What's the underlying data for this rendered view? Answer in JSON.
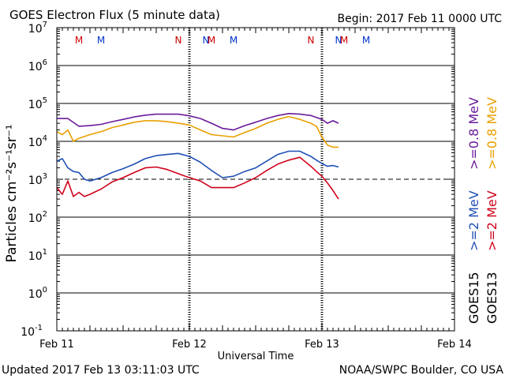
{
  "chart_data": {
    "type": "line",
    "title": "GOES Electron Flux (5 minute data)",
    "begin_label": "Begin: 2017 Feb 11 0000 UTC",
    "xlabel": "Universal Time",
    "ylabel": "Particles cm⁻²s⁻¹sr⁻¹",
    "x_units": "hours since Begin",
    "xlim": [
      0,
      72
    ],
    "x_ticks": [
      {
        "x": 0,
        "label": "Feb 11"
      },
      {
        "x": 24,
        "label": "Feb 12"
      },
      {
        "x": 48,
        "label": "Feb 13"
      },
      {
        "x": 72,
        "label": "Feb 14"
      }
    ],
    "y_scale": "log",
    "ylim_exp": [
      -1,
      7
    ],
    "y_ticks": [
      {
        "exp": 7,
        "label": "10",
        "sup": "7"
      },
      {
        "exp": 6,
        "label": "10",
        "sup": "6"
      },
      {
        "exp": 5,
        "label": "10",
        "sup": "5"
      },
      {
        "exp": 4,
        "label": "10",
        "sup": "4"
      },
      {
        "exp": 3,
        "label": "10",
        "sup": "3"
      },
      {
        "exp": 2,
        "label": "10",
        "sup": "2"
      },
      {
        "exp": 1,
        "label": "10",
        "sup": "1"
      },
      {
        "exp": 0,
        "label": "10",
        "sup": "0"
      },
      {
        "exp": -1,
        "label": "10",
        "sup": "-1"
      }
    ],
    "threshold_exp": 3,
    "grid_horizontal": true,
    "mn_markers": [
      {
        "x": 4,
        "label": "M",
        "color": "#cc0000"
      },
      {
        "x": 8,
        "label": "M",
        "color": "#0033cc"
      },
      {
        "x": 22,
        "label": "N",
        "color": "#cc0000"
      },
      {
        "x": 27,
        "label": "N",
        "color": "#0033cc"
      },
      {
        "x": 28,
        "label": "M",
        "color": "#cc0000"
      },
      {
        "x": 32,
        "label": "M",
        "color": "#0033cc"
      },
      {
        "x": 46,
        "label": "N",
        "color": "#cc0000"
      },
      {
        "x": 51,
        "label": "N",
        "color": "#0033cc"
      },
      {
        "x": 52,
        "label": "M",
        "color": "#cc0000"
      },
      {
        "x": 56,
        "label": "M",
        "color": "#0033cc"
      }
    ],
    "series": [
      {
        "legend_parts": [
          "GOES15",
          ">=0.8",
          "MeV"
        ],
        "color": "#6a1b9a",
        "x": [
          0,
          2,
          4,
          6,
          8,
          10,
          12,
          14,
          16,
          18,
          20,
          22,
          24,
          26,
          28,
          30,
          32,
          34,
          36,
          38,
          40,
          42,
          44,
          46,
          48,
          49,
          50,
          51
        ],
        "y": [
          40000,
          40000,
          25000,
          26000,
          28000,
          33000,
          38000,
          44000,
          49000,
          52000,
          52000,
          52000,
          47000,
          40000,
          30000,
          22000,
          20000,
          26000,
          32000,
          40000,
          48000,
          54000,
          52000,
          48000,
          38000,
          30000,
          35000,
          30000
        ]
      },
      {
        "legend_parts": [
          "GOES13",
          ">=0.8",
          "MeV"
        ],
        "color": "#e8a000",
        "x": [
          0,
          1,
          2,
          3,
          4,
          6,
          8,
          10,
          12,
          14,
          16,
          18,
          20,
          22,
          24,
          26,
          28,
          30,
          32,
          34,
          36,
          38,
          40,
          42,
          44,
          46,
          47,
          48,
          49,
          50,
          51
        ],
        "y": [
          18000,
          15000,
          20000,
          10000,
          12000,
          15000,
          18000,
          23000,
          27000,
          32000,
          35000,
          35000,
          33000,
          30000,
          27000,
          20000,
          15000,
          14000,
          13000,
          17000,
          22000,
          30000,
          38000,
          45000,
          38000,
          30000,
          25000,
          13000,
          8000,
          7000,
          7000
        ]
      },
      {
        "legend_parts": [
          "GOES15",
          ">=2",
          "MeV"
        ],
        "color": "#1f4fb4",
        "x": [
          0,
          1,
          2,
          3,
          4,
          5,
          6,
          8,
          10,
          12,
          14,
          16,
          18,
          20,
          22,
          24,
          26,
          28,
          30,
          32,
          34,
          36,
          38,
          40,
          42,
          44,
          46,
          47,
          48,
          49,
          50,
          51
        ],
        "y": [
          3000,
          3500,
          2000,
          1600,
          1500,
          1000,
          900,
          1100,
          1500,
          1900,
          2500,
          3500,
          4200,
          4500,
          4800,
          4000,
          2800,
          1700,
          1100,
          1200,
          1600,
          2000,
          3000,
          4500,
          5500,
          5500,
          4000,
          3200,
          2600,
          2200,
          2300,
          2100
        ]
      },
      {
        "legend_parts": [
          "GOES13",
          ">=2",
          "MeV"
        ],
        "color": "#d0021b",
        "x": [
          0,
          1,
          2,
          3,
          4,
          5,
          6,
          8,
          10,
          12,
          14,
          16,
          18,
          20,
          22,
          24,
          26,
          28,
          30,
          32,
          34,
          36,
          38,
          40,
          42,
          44,
          46,
          47,
          48,
          49,
          50,
          51
        ],
        "y": [
          600,
          400,
          900,
          350,
          450,
          350,
          400,
          550,
          850,
          1100,
          1500,
          2000,
          2100,
          1800,
          1400,
          1100,
          900,
          600,
          600,
          600,
          800,
          1100,
          1700,
          2500,
          3200,
          3800,
          2200,
          1600,
          1200,
          800,
          500,
          300
        ]
      }
    ]
  },
  "footer": {
    "updated": "Updated 2017 Feb 13 03:11:03 UTC",
    "credit": "NOAA/SWPC Boulder, CO USA"
  }
}
